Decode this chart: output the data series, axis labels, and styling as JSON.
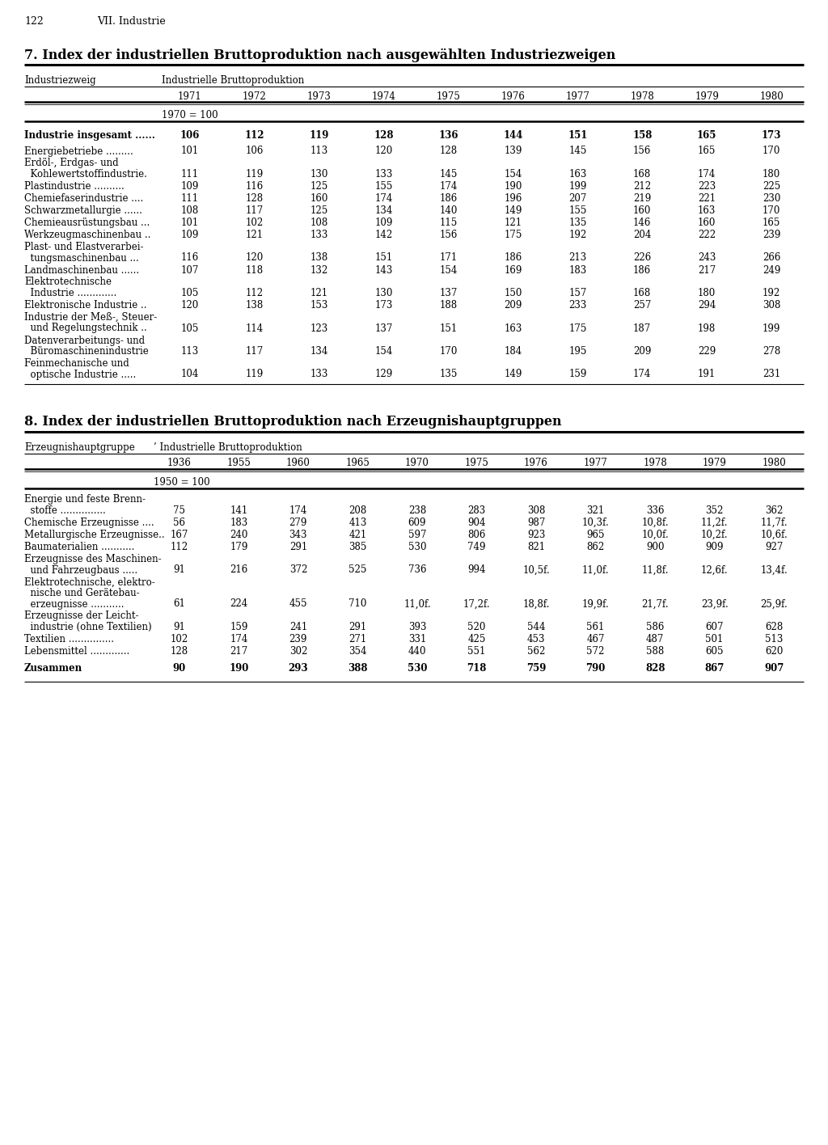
{
  "page_number": "122",
  "chapter": "VII. Industrie",
  "table1": {
    "title": "7. Index der industriellen Bruttoproduktion nach ausgewählten Industriezweigen",
    "col_header_main": "Industrielle Bruttoproduktion",
    "row_label_col": "Industriezweig",
    "years": [
      "1971",
      "1972",
      "1973",
      "1974",
      "1975",
      "1976",
      "1977",
      "1978",
      "1979",
      "1980"
    ],
    "base": "1970 = 100",
    "rows": [
      {
        "label": [
          "Industrie insgesamt ......"
        ],
        "bold": true,
        "indent2": false,
        "values": [
          "106",
          "112",
          "119",
          "128",
          "136",
          "144",
          "151",
          "158",
          "165",
          "173"
        ]
      },
      {
        "label": [
          "Energiebetriebe ........."
        ],
        "bold": false,
        "indent2": false,
        "values": [
          "101",
          "106",
          "113",
          "120",
          "128",
          "139",
          "145",
          "156",
          "165",
          "170"
        ]
      },
      {
        "label": [
          "Erdöl-, Erdgas- und",
          "  Kohlewertstoffindustrie."
        ],
        "bold": false,
        "indent2": true,
        "values": [
          "111",
          "119",
          "130",
          "133",
          "145",
          "154",
          "163",
          "168",
          "174",
          "180"
        ]
      },
      {
        "label": [
          "Plastindustrie .........."
        ],
        "bold": false,
        "indent2": false,
        "values": [
          "109",
          "116",
          "125",
          "155",
          "174",
          "190",
          "199",
          "212",
          "223",
          "225"
        ]
      },
      {
        "label": [
          "Chemiefaserindustrie ...."
        ],
        "bold": false,
        "indent2": false,
        "values": [
          "111",
          "128",
          "160",
          "174",
          "186",
          "196",
          "207",
          "219",
          "221",
          "230"
        ]
      },
      {
        "label": [
          "Schwarzmetallurgie ......"
        ],
        "bold": false,
        "indent2": false,
        "values": [
          "108",
          "117",
          "125",
          "134",
          "140",
          "149",
          "155",
          "160",
          "163",
          "170"
        ]
      },
      {
        "label": [
          "Chemieausrüstungsbau ..."
        ],
        "bold": false,
        "indent2": false,
        "values": [
          "101",
          "102",
          "108",
          "109",
          "115",
          "121",
          "135",
          "146",
          "160",
          "165"
        ]
      },
      {
        "label": [
          "Werkzeugmaschinenbau .."
        ],
        "bold": false,
        "indent2": false,
        "values": [
          "109",
          "121",
          "133",
          "142",
          "156",
          "175",
          "192",
          "204",
          "222",
          "239"
        ]
      },
      {
        "label": [
          "Plast- und Elastverarbei-",
          "  tungsmaschinenbau ..."
        ],
        "bold": false,
        "indent2": true,
        "values": [
          "116",
          "120",
          "138",
          "151",
          "171",
          "186",
          "213",
          "226",
          "243",
          "266"
        ]
      },
      {
        "label": [
          "Landmaschinenbau ......"
        ],
        "bold": false,
        "indent2": false,
        "values": [
          "107",
          "118",
          "132",
          "143",
          "154",
          "169",
          "183",
          "186",
          "217",
          "249"
        ]
      },
      {
        "label": [
          "Elektrotechnische",
          "  Industrie ............."
        ],
        "bold": false,
        "indent2": true,
        "values": [
          "105",
          "112",
          "121",
          "130",
          "137",
          "150",
          "157",
          "168",
          "180",
          "192"
        ]
      },
      {
        "label": [
          "Elektronische Industrie .."
        ],
        "bold": false,
        "indent2": false,
        "values": [
          "120",
          "138",
          "153",
          "173",
          "188",
          "209",
          "233",
          "257",
          "294",
          "308"
        ]
      },
      {
        "label": [
          "Industrie der Meß-, Steuer-",
          "  und Regelungstechnik .."
        ],
        "bold": false,
        "indent2": true,
        "values": [
          "105",
          "114",
          "123",
          "137",
          "151",
          "163",
          "175",
          "187",
          "198",
          "199"
        ]
      },
      {
        "label": [
          "Datenverarbeitungs- und",
          "  Büromaschinenindustrie"
        ],
        "bold": false,
        "indent2": true,
        "values": [
          "113",
          "117",
          "134",
          "154",
          "170",
          "184",
          "195",
          "209",
          "229",
          "278"
        ]
      },
      {
        "label": [
          "Feinmechanische und",
          "  optische Industrie ....."
        ],
        "bold": false,
        "indent2": true,
        "values": [
          "104",
          "119",
          "133",
          "129",
          "135",
          "149",
          "159",
          "174",
          "191",
          "231"
        ]
      }
    ]
  },
  "table2": {
    "title": "8. Index der industriellen Bruttoproduktion nach Erzeugnishauptgruppen",
    "col_header_main": "Industrielle Bruttoproduktion",
    "row_label_col": "Erzeugnishauptgruppe",
    "years": [
      "1936",
      "1955",
      "1960",
      "1965",
      "1970",
      "1975",
      "1976",
      "1977",
      "1978",
      "1979",
      "1980"
    ],
    "base": "1950 = 100",
    "rows": [
      {
        "label": [
          "Energie und feste Brenn-",
          "  stoffe ..............."
        ],
        "bold": false,
        "indent2": true,
        "values": [
          "75",
          "141",
          "174",
          "208",
          "238",
          "283",
          "308",
          "321",
          "336",
          "352",
          "362"
        ]
      },
      {
        "label": [
          "Chemische Erzeugnisse ...."
        ],
        "bold": false,
        "indent2": false,
        "values": [
          "56",
          "183",
          "279",
          "413",
          "609",
          "904",
          "987",
          "10,3f.",
          "10,8f.",
          "11,2f.",
          "11,7f."
        ]
      },
      {
        "label": [
          "Metallurgische Erzeugnisse.."
        ],
        "bold": false,
        "indent2": false,
        "values": [
          "167",
          "240",
          "343",
          "421",
          "597",
          "806",
          "923",
          "965",
          "10,0f.",
          "10,2f.",
          "10,6f."
        ]
      },
      {
        "label": [
          "Baumaterialien ..........."
        ],
        "bold": false,
        "indent2": false,
        "values": [
          "112",
          "179",
          "291",
          "385",
          "530",
          "749",
          "821",
          "862",
          "900",
          "909",
          "927"
        ]
      },
      {
        "label": [
          "Erzeugnisse des Maschinen-",
          "  und Fahrzeugbaus ....."
        ],
        "bold": false,
        "indent2": true,
        "values": [
          "91",
          "216",
          "372",
          "525",
          "736",
          "994",
          "10,5f.",
          "11,0f.",
          "11,8f.",
          "12,6f.",
          "13,4f."
        ]
      },
      {
        "label": [
          "Elektrotechnische, elektro-",
          "  nische und Gerätebau-",
          "  erzeugnisse ..........."
        ],
        "bold": false,
        "indent2": true,
        "values": [
          "61",
          "224",
          "455",
          "710",
          "11,0f.",
          "17,2f.",
          "18,8f.",
          "19,9f.",
          "21,7f.",
          "23,9f.",
          "25,9f."
        ]
      },
      {
        "label": [
          "Erzeugnisse der Leicht-",
          "  industrie (ohne Textilien)"
        ],
        "bold": false,
        "indent2": true,
        "values": [
          "91",
          "159",
          "241",
          "291",
          "393",
          "520",
          "544",
          "561",
          "586",
          "607",
          "628"
        ]
      },
      {
        "label": [
          "Textilien ..............."
        ],
        "bold": false,
        "indent2": false,
        "values": [
          "102",
          "174",
          "239",
          "271",
          "331",
          "425",
          "453",
          "467",
          "487",
          "501",
          "513"
        ]
      },
      {
        "label": [
          "Lebensmittel ............."
        ],
        "bold": false,
        "indent2": false,
        "values": [
          "128",
          "217",
          "302",
          "354",
          "440",
          "551",
          "562",
          "572",
          "588",
          "605",
          "620"
        ]
      },
      {
        "label": [
          "Zusammen"
        ],
        "bold": true,
        "indent2": false,
        "values": [
          "90",
          "190",
          "293",
          "388",
          "530",
          "718",
          "759",
          "790",
          "828",
          "867",
          "907"
        ]
      }
    ]
  }
}
